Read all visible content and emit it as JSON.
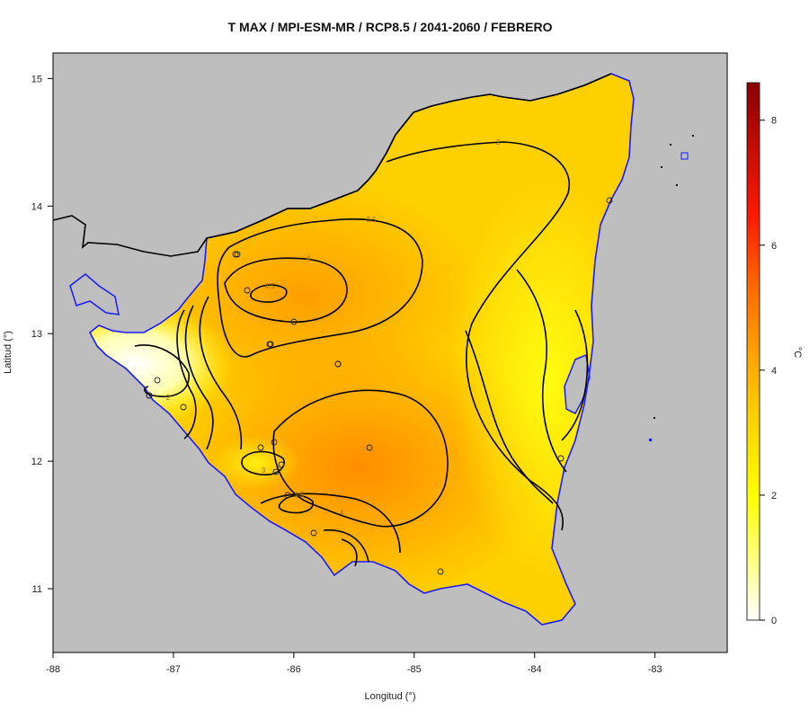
{
  "map": {
    "title": "T MAX / MPI-ESM-MR / RCP8.5 / 2041-2060 / FEBRERO",
    "x_axis_label": "Longitud (°)",
    "y_axis_label": "Latitud (°)",
    "x_ticks": [
      "-88",
      "-87",
      "-86",
      "-85",
      "-84",
      "-83"
    ],
    "y_ticks": [
      "11",
      "12",
      "13",
      "14",
      "15"
    ],
    "xlim": [
      -88,
      -82.4
    ],
    "ylim": [
      10.5,
      15.2
    ],
    "colors": {
      "ocean_land_mask": "#bebebe",
      "water_outline": "#1a1aff",
      "contour": "#000000"
    },
    "colorbar": {
      "unit": "°C",
      "ticks": [
        "0",
        "2",
        "4",
        "6",
        "8"
      ],
      "range": [
        0,
        8.6
      ],
      "gradient": [
        "#ffffff",
        "#ffff00",
        "#ffc000",
        "#ff7f00",
        "#ff0000",
        "#8b0000"
      ]
    },
    "contour_labels": [
      "3",
      "3.5",
      "4",
      "4.5",
      "2",
      "3",
      "4.5",
      "4"
    ],
    "stations": 22
  }
}
